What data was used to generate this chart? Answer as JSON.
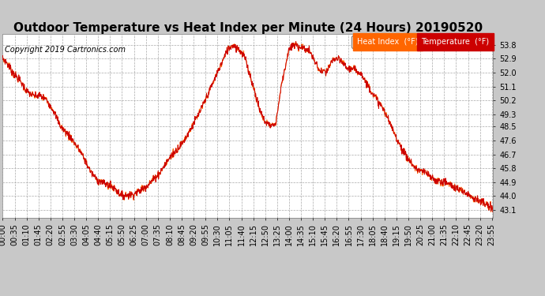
{
  "title": "Outdoor Temperature vs Heat Index per Minute (24 Hours) 20190520",
  "copyright": "Copyright 2019 Cartronics.com",
  "ylabel_right_ticks": [
    43.1,
    44.0,
    44.9,
    45.8,
    46.7,
    47.6,
    48.5,
    49.3,
    50.2,
    51.1,
    52.0,
    52.9,
    53.8
  ],
  "ylim": [
    42.6,
    54.5
  ],
  "legend_heat_index_label": "Heat Index  (°F)",
  "legend_temp_label": "Temperature  (°F)",
  "legend_heat_index_bg": "#FF6600",
  "legend_temp_bg": "#CC0000",
  "line_color": "#CC0000",
  "plot_bg_color": "#FFFFFF",
  "fig_bg_color": "#C8C8C8",
  "grid_color": "#AAAAAA",
  "title_fontsize": 11,
  "copyright_fontsize": 7,
  "tick_fontsize": 7,
  "x_tick_interval_minutes": 35,
  "keypoints_min": [
    0,
    10,
    30,
    50,
    70,
    90,
    110,
    130,
    150,
    170,
    200,
    230,
    260,
    280,
    310,
    330,
    340,
    350,
    360,
    380,
    400,
    430,
    460,
    490,
    510,
    530,
    555,
    575,
    590,
    600,
    620,
    640,
    660,
    675,
    690,
    710,
    730,
    755,
    770,
    785,
    800,
    820,
    840,
    855,
    870,
    900,
    930,
    950,
    970,
    990,
    1010,
    1030,
    1050,
    1070,
    1090,
    1120,
    1150,
    1180,
    1210,
    1240,
    1270,
    1300,
    1330,
    1360,
    1390,
    1420,
    1439
  ],
  "keypoints_val": [
    52.9,
    52.7,
    52.0,
    51.5,
    50.8,
    50.5,
    50.5,
    50.2,
    49.5,
    48.5,
    47.8,
    46.8,
    45.5,
    45.0,
    44.7,
    44.5,
    44.2,
    44.05,
    44.05,
    44.1,
    44.3,
    44.8,
    45.5,
    46.5,
    47.0,
    47.5,
    48.5,
    49.3,
    50.0,
    50.5,
    51.5,
    52.5,
    53.5,
    53.8,
    53.6,
    53.0,
    51.5,
    49.5,
    48.8,
    48.6,
    48.6,
    51.5,
    53.5,
    53.8,
    53.7,
    53.4,
    52.1,
    52.0,
    52.9,
    52.8,
    52.3,
    52.2,
    52.0,
    51.2,
    50.5,
    49.5,
    48.0,
    46.7,
    45.8,
    45.5,
    45.0,
    44.9,
    44.5,
    44.2,
    43.8,
    43.4,
    43.1
  ]
}
